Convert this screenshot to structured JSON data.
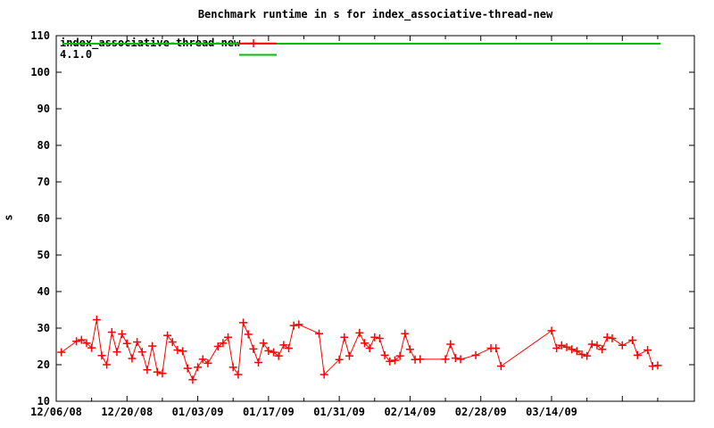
{
  "title": "Benchmark runtime in s for index_associative-thread-new",
  "colors": {
    "background": "#ffffff",
    "axis": "#000000",
    "series": "#ff0000",
    "baseline": "#00c000",
    "text": "#000000"
  },
  "chart_data": {
    "type": "line",
    "title": "Benchmark runtime in s for index_associative-thread-new",
    "xlabel": "",
    "ylabel": "s",
    "ylim": [
      10,
      110
    ],
    "y_ticks": [
      10,
      20,
      30,
      40,
      50,
      60,
      70,
      80,
      90,
      100,
      110
    ],
    "grid": false,
    "legend_position": "top-left-inside",
    "x_axis_days": [
      0,
      126.2
    ],
    "x_tick_step_days": 7,
    "x_label_step_days": 14,
    "x_tick_labels": [
      {
        "day": 0,
        "label": "12/06/08"
      },
      {
        "day": 14,
        "label": "12/20/08"
      },
      {
        "day": 28,
        "label": "01/03/09"
      },
      {
        "day": 42,
        "label": "01/17/09"
      },
      {
        "day": 56,
        "label": "01/31/09"
      },
      {
        "day": 70,
        "label": "02/14/09"
      },
      {
        "day": 84,
        "label": "02/28/09"
      },
      {
        "day": 98,
        "label": "03/14/09"
      }
    ],
    "legend": [
      {
        "name": "index_associative-thread-new",
        "color": "#ff0000",
        "marker": "plus"
      },
      {
        "name": "4.1.0",
        "color": "#00c000",
        "marker": "none"
      }
    ],
    "baseline": {
      "name": "4.1.0",
      "value": 107.8,
      "day_start": 1.2,
      "day_end": 119.6,
      "color": "#00c000"
    },
    "series": [
      {
        "name": "index_associative-thread-new",
        "color": "#ff0000",
        "marker": "plus",
        "points": [
          [
            1,
            "12/07/08",
            23.4
          ],
          [
            4,
            "12/10/08",
            26.4
          ],
          [
            5,
            "12/11/08",
            26.8
          ],
          [
            6,
            "12/12/08",
            25.9
          ],
          [
            7,
            "12/13/08",
            24.6
          ],
          [
            8,
            "12/14/08",
            32.3
          ],
          [
            9,
            "12/15/08",
            22.5
          ],
          [
            10,
            "12/16/08",
            20.0
          ],
          [
            11,
            "12/17/08",
            28.9
          ],
          [
            12,
            "12/18/08",
            23.5
          ],
          [
            13,
            "12/19/08",
            28.4
          ],
          [
            14,
            "12/20/08",
            25.8
          ],
          [
            15,
            "12/21/08",
            21.7
          ],
          [
            16,
            "12/22/08",
            26.2
          ],
          [
            17,
            "12/23/08",
            23.5
          ],
          [
            18,
            "12/24/08",
            18.6
          ],
          [
            19,
            "12/25/08",
            25.1
          ],
          [
            20,
            "12/26/08",
            18.0
          ],
          [
            21,
            "12/27/08",
            17.6
          ],
          [
            22,
            "12/28/08",
            28.0
          ],
          [
            23,
            "12/29/08",
            26.2
          ],
          [
            24,
            "12/30/08",
            24.0
          ],
          [
            25,
            "12/31/08",
            23.7
          ],
          [
            26,
            "01/01/09",
            19.0
          ],
          [
            27,
            "01/02/09",
            15.9
          ],
          [
            28,
            "01/03/09",
            19.3
          ],
          [
            29,
            "01/04/09",
            21.5
          ],
          [
            30,
            "01/05/09",
            20.4
          ],
          [
            32,
            "01/07/09",
            25.0
          ],
          [
            33,
            "01/08/09",
            25.9
          ],
          [
            34,
            "01/09/09",
            27.5
          ],
          [
            35,
            "01/10/09",
            19.3
          ],
          [
            36,
            "01/11/09",
            17.3
          ],
          [
            37,
            "01/12/09",
            31.5
          ],
          [
            38,
            "01/13/09",
            28.3
          ],
          [
            39,
            "01/14/09",
            24.3
          ],
          [
            40,
            "01/15/09",
            20.6
          ],
          [
            41,
            "01/16/09",
            25.9
          ],
          [
            42,
            "01/17/09",
            23.8
          ],
          [
            43,
            "01/18/09",
            23.4
          ],
          [
            44,
            "01/19/09",
            22.4
          ],
          [
            45,
            "01/20/09",
            25.4
          ],
          [
            46,
            "01/21/09",
            24.5
          ],
          [
            47,
            "01/22/09",
            30.7
          ],
          [
            48,
            "01/23/09",
            31.0
          ],
          [
            52,
            "01/27/09",
            28.5
          ],
          [
            53,
            "01/28/09",
            17.3
          ],
          [
            56,
            "01/31/09",
            21.4
          ],
          [
            57,
            "02/01/09",
            27.5
          ],
          [
            58,
            "02/02/09",
            22.4
          ],
          [
            60,
            "02/04/09",
            28.7
          ],
          [
            61,
            "02/05/09",
            25.9
          ],
          [
            62,
            "02/06/09",
            24.5
          ],
          [
            63,
            "02/07/09",
            27.5
          ],
          [
            64,
            "02/08/09",
            27.2
          ],
          [
            65,
            "02/09/09",
            22.6
          ],
          [
            66,
            "02/10/09",
            20.9
          ],
          [
            67,
            "02/11/09",
            21.2
          ],
          [
            68,
            "02/12/09",
            22.4
          ],
          [
            69,
            "02/13/09",
            28.5
          ],
          [
            70,
            "02/14/09",
            24.2
          ],
          [
            71,
            "02/15/09",
            21.4
          ],
          [
            72,
            "02/16/09",
            21.5
          ],
          [
            77,
            "02/21/09",
            21.5
          ],
          [
            78,
            "02/22/09",
            25.6
          ],
          [
            79,
            "02/23/09",
            21.8
          ],
          [
            80,
            "02/24/09",
            21.5
          ],
          [
            83,
            "02/27/09",
            22.6
          ],
          [
            86,
            "03/02/09",
            24.5
          ],
          [
            87,
            "03/03/09",
            24.5
          ],
          [
            88,
            "03/04/09",
            19.6
          ],
          [
            98,
            "03/14/09",
            29.3
          ],
          [
            99,
            "03/15/09",
            24.5
          ],
          [
            100,
            "03/16/09",
            25.3
          ],
          [
            101,
            "03/17/09",
            24.8
          ],
          [
            102,
            "03/18/09",
            24.2
          ],
          [
            103,
            "03/19/09",
            23.7
          ],
          [
            104,
            "03/20/09",
            22.8
          ],
          [
            105,
            "03/21/09",
            22.4
          ],
          [
            106,
            "03/22/09",
            25.6
          ],
          [
            107,
            "03/23/09",
            25.3
          ],
          [
            108,
            "03/24/09",
            24.2
          ],
          [
            109,
            "03/25/09",
            27.5
          ],
          [
            110,
            "03/26/09",
            27.2
          ],
          [
            112,
            "03/28/09",
            25.3
          ],
          [
            114,
            "03/30/09",
            26.7
          ],
          [
            115,
            "03/31/09",
            22.6
          ],
          [
            117,
            "04/02/09",
            24.0
          ],
          [
            118,
            "04/03/09",
            19.6
          ],
          [
            119,
            "04/04/09",
            19.8
          ]
        ]
      }
    ]
  }
}
